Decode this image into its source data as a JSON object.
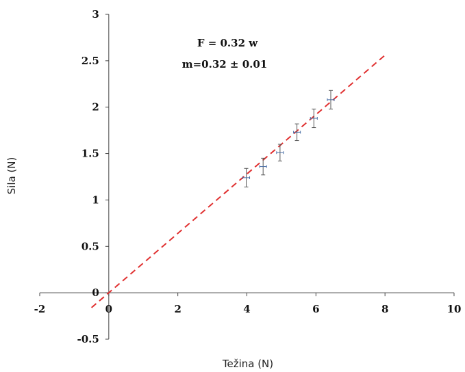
{
  "chart_data": {
    "type": "scatter",
    "title": "",
    "xlabel": "Težina (N)",
    "ylabel": "Sila (N)",
    "xlim": [
      -2,
      10
    ],
    "ylim": [
      -0.5,
      3
    ],
    "x_ticks": [
      -2,
      0,
      2,
      4,
      6,
      8,
      10
    ],
    "x_tick_labels": [
      "-2",
      "0",
      "2",
      "4",
      "6",
      "8",
      "10"
    ],
    "y_ticks": [
      -0.5,
      0,
      0.5,
      1,
      1.5,
      2,
      2.5,
      3
    ],
    "y_tick_labels": [
      "-0.5",
      "0",
      "0.5",
      "1",
      "1.5",
      "2",
      "2.5",
      "3"
    ],
    "grid": false,
    "series": [
      {
        "x": [
          3.98,
          4.47,
          4.96,
          5.45,
          5.94,
          6.43
        ],
        "y": [
          1.24,
          1.36,
          1.51,
          1.73,
          1.88,
          2.08
        ],
        "y_err": [
          0.1,
          0.09,
          0.09,
          0.09,
          0.1,
          0.1
        ],
        "x_err": [
          0.1,
          0.1,
          0.1,
          0.1,
          0.1,
          0.1
        ],
        "color": "#4a6fa5"
      }
    ],
    "fit_line": {
      "slope": 0.32,
      "intercept": 0,
      "x_range": [
        -0.5,
        8.0
      ],
      "color": "#e03030",
      "style": "dashed"
    },
    "annotations": [
      "F = 0.32 w",
      "m=0.32 ± 0.01"
    ]
  }
}
